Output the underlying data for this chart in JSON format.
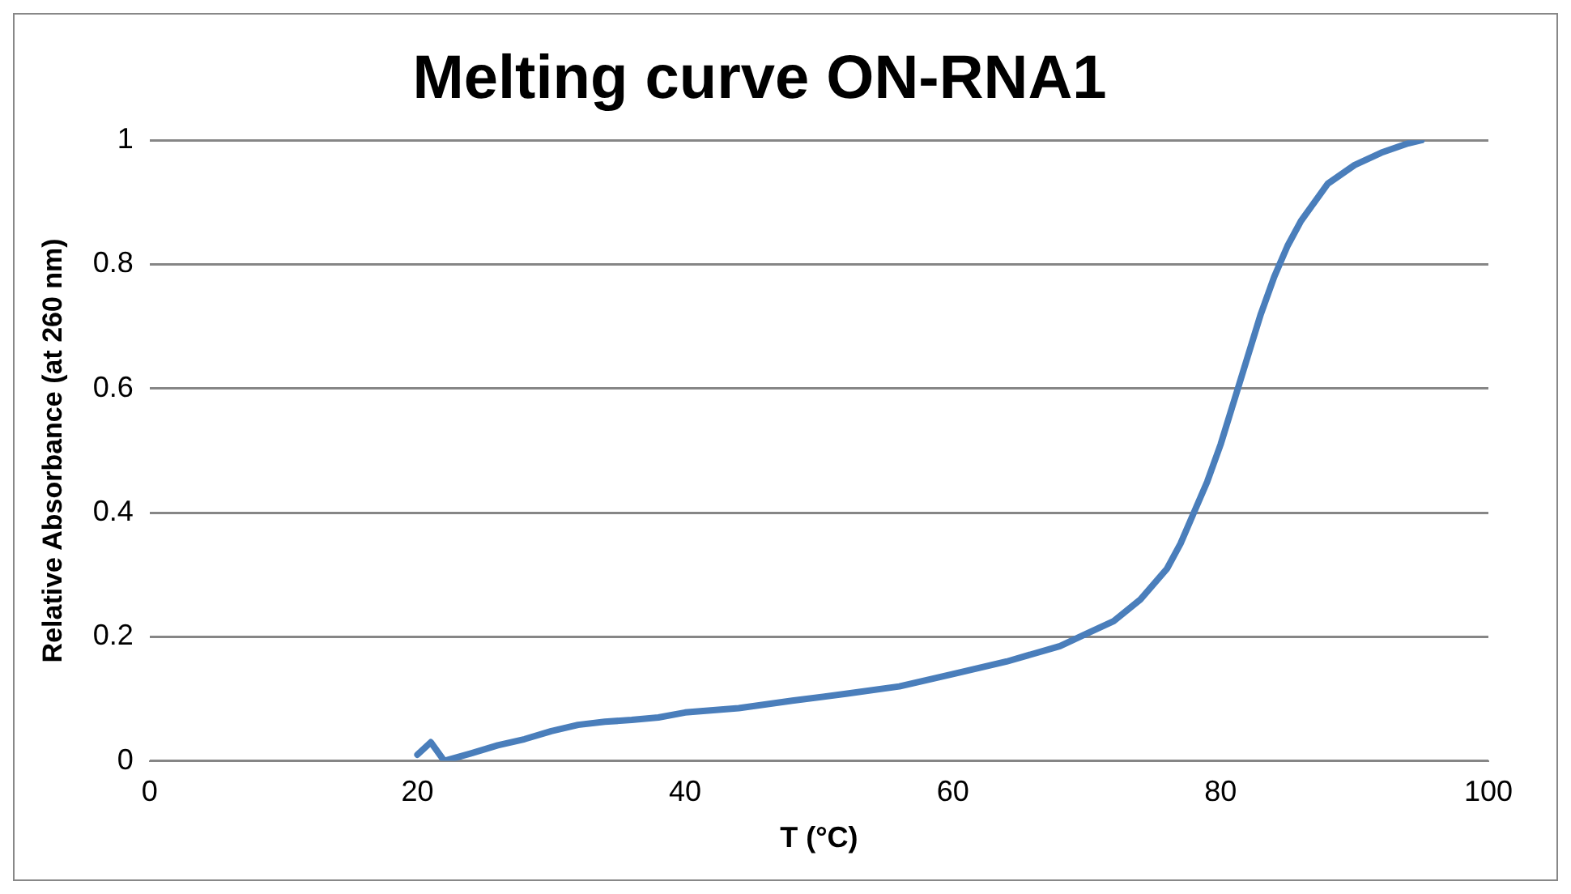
{
  "chart_data": {
    "type": "line",
    "title": "Melting curve ON-RNA1",
    "xlabel": "T (°C)",
    "ylabel": "Relative Absorbance (at 260 nm)",
    "x": [
      20,
      21,
      22,
      24,
      26,
      28,
      30,
      32,
      34,
      36,
      38,
      40,
      44,
      48,
      52,
      56,
      60,
      64,
      68,
      70,
      72,
      74,
      76,
      77,
      78,
      79,
      80,
      81,
      82,
      83,
      84,
      85,
      86,
      87,
      88,
      90,
      92,
      94,
      95
    ],
    "series": [
      {
        "color": "#4a7ebb",
        "values": [
          0.01,
          0.03,
          0.0,
          0.012,
          0.025,
          0.035,
          0.048,
          0.058,
          0.063,
          0.066,
          0.07,
          0.078,
          0.085,
          0.097,
          0.108,
          0.12,
          0.14,
          0.16,
          0.185,
          0.205,
          0.225,
          0.26,
          0.31,
          0.35,
          0.4,
          0.45,
          0.51,
          0.58,
          0.65,
          0.72,
          0.78,
          0.83,
          0.87,
          0.9,
          0.93,
          0.96,
          0.98,
          0.995,
          1.0
        ]
      }
    ],
    "xlim": [
      0,
      100
    ],
    "xticks": [
      0,
      20,
      40,
      60,
      80,
      100
    ],
    "ylim": [
      0,
      1
    ],
    "yticks": [
      0,
      0.2,
      0.4,
      0.6,
      0.8,
      1
    ],
    "grid": "y",
    "legend": false,
    "marker": "none",
    "line_style": "solid"
  }
}
